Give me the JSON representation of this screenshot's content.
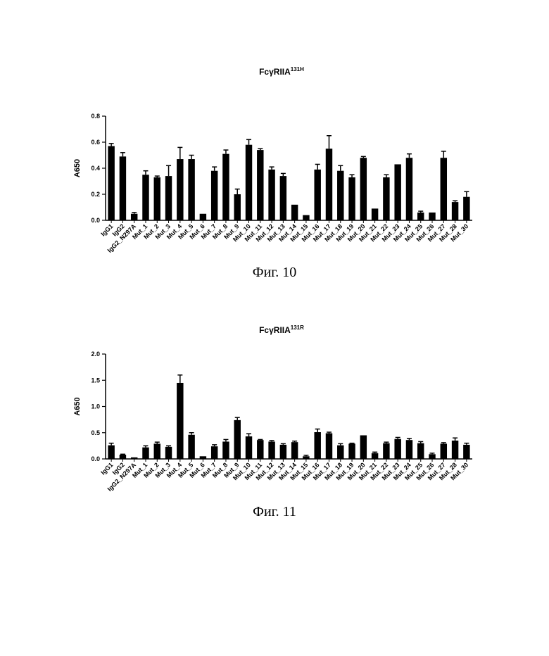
{
  "chart_data": [
    {
      "type": "bar",
      "title": "FcγRIIA",
      "title_superscript": "131H",
      "ylabel": "A650",
      "ylim": [
        0,
        0.8
      ],
      "yticks": [
        "0.0",
        "0.2",
        "0.4",
        "0.6",
        "0.8"
      ],
      "ytick_values": [
        0,
        0.2,
        0.4,
        0.6,
        0.8
      ],
      "error_bars": true,
      "caption": "Фиг. 10",
      "categories": [
        "IgG1",
        "IgG2",
        "IgG2_N297A",
        "Mut_1",
        "Mut_2",
        "Mut_3",
        "Mut_4",
        "Mut_5",
        "Mut_6",
        "Mut_7",
        "Mut_8",
        "Mut_9",
        "Mut_10",
        "Mut_11",
        "Mut_12",
        "Mut_13",
        "Mut_14",
        "Mut_15",
        "Mut_16",
        "Mut_17",
        "Mut_18",
        "Mut_19",
        "Mut_20",
        "Mut_21",
        "Mut_22",
        "Mut_23",
        "Mut_24",
        "Mut_25",
        "Mut_26",
        "Mut_27",
        "Mut_28",
        "Mut_30"
      ],
      "values": [
        0.57,
        0.49,
        0.05,
        0.35,
        0.33,
        0.34,
        0.47,
        0.47,
        0.05,
        0.38,
        0.51,
        0.2,
        0.58,
        0.54,
        0.39,
        0.34,
        0.12,
        0.04,
        0.39,
        0.55,
        0.38,
        0.33,
        0.48,
        0.09,
        0.33,
        0.43,
        0.48,
        0.06,
        0.06,
        0.48,
        0.14,
        0.18
      ],
      "errors": [
        0.02,
        0.03,
        0.01,
        0.03,
        0.01,
        0.08,
        0.09,
        0.03,
        0.0,
        0.03,
        0.03,
        0.04,
        0.04,
        0.01,
        0.02,
        0.02,
        0.0,
        0.0,
        0.04,
        0.1,
        0.04,
        0.02,
        0.01,
        0.0,
        0.02,
        0.0,
        0.03,
        0.01,
        0.0,
        0.05,
        0.01,
        0.04
      ]
    },
    {
      "type": "bar",
      "title": "FcγRIIA",
      "title_superscript": "131R",
      "ylabel": "A650",
      "ylim": [
        0,
        2.0
      ],
      "yticks": [
        "0.0",
        "0.5",
        "1.0",
        "1.5",
        "2.0"
      ],
      "ytick_values": [
        0,
        0.5,
        1.0,
        1.5,
        2.0
      ],
      "error_bars": true,
      "caption": "Фиг. 11",
      "categories": [
        "IgG1",
        "IgG2",
        "IgG2_N297A",
        "Mut_1",
        "Mut_2",
        "Mut_3",
        "Mut_4",
        "Mut_5",
        "Mut_6",
        "Mut_7",
        "Mut_8",
        "Mut_9",
        "Mut_10",
        "Mut_11",
        "Mut_12",
        "Mut_13",
        "Mut_14",
        "Mut_15",
        "Mut_16",
        "Mut_17",
        "Mut_18",
        "Mut_19",
        "Mut_20",
        "Mut_21",
        "Mut_22",
        "Mut_23",
        "Mut_24",
        "Mut_25",
        "Mut_26",
        "Mut_27",
        "Mut_28",
        "Mut_30"
      ],
      "values": [
        0.26,
        0.08,
        0.03,
        0.22,
        0.29,
        0.23,
        1.45,
        0.46,
        0.05,
        0.24,
        0.33,
        0.74,
        0.43,
        0.36,
        0.33,
        0.27,
        0.32,
        0.05,
        0.51,
        0.49,
        0.26,
        0.29,
        0.45,
        0.11,
        0.3,
        0.38,
        0.36,
        0.3,
        0.09,
        0.29,
        0.35,
        0.27
      ],
      "errors": [
        0.04,
        0.01,
        0.0,
        0.03,
        0.03,
        0.02,
        0.15,
        0.04,
        0.0,
        0.03,
        0.04,
        0.05,
        0.05,
        0.01,
        0.02,
        0.02,
        0.02,
        0.02,
        0.06,
        0.02,
        0.03,
        0.01,
        0.0,
        0.02,
        0.02,
        0.03,
        0.03,
        0.03,
        0.02,
        0.02,
        0.05,
        0.03
      ]
    }
  ]
}
